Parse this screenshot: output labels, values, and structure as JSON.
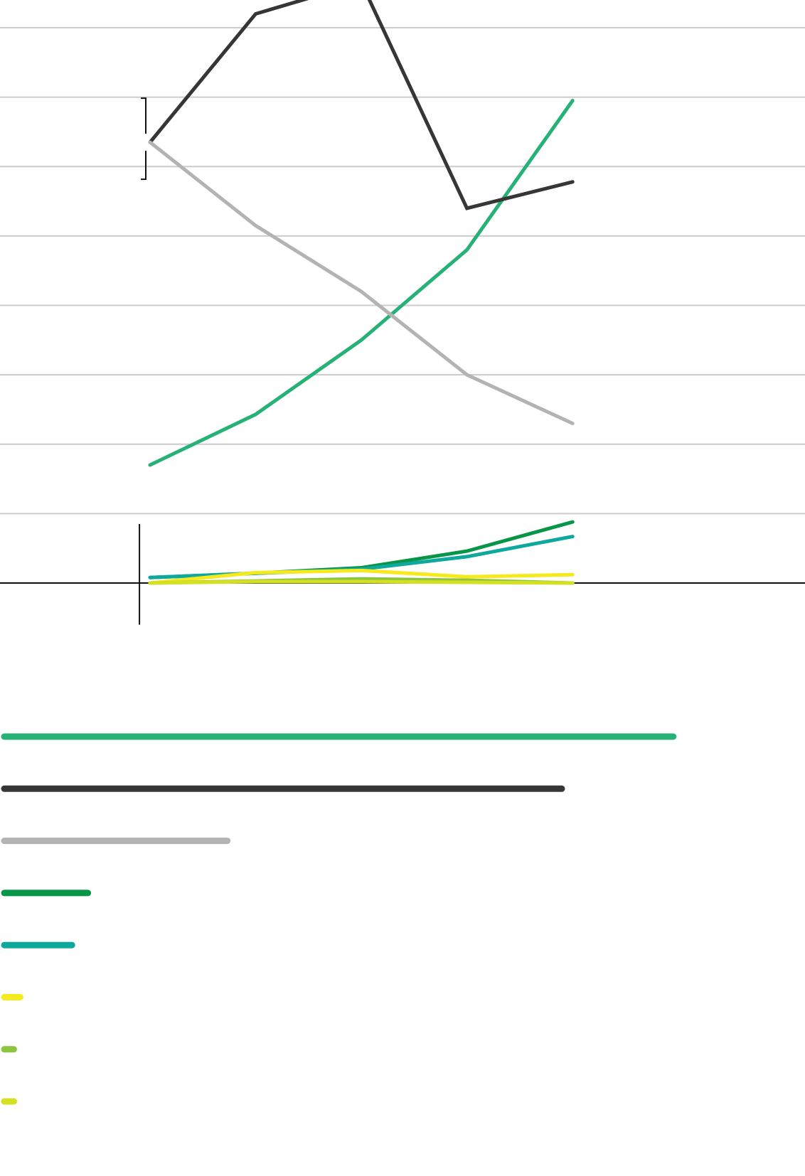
{
  "colors": {
    "background": "#ffffff",
    "gridline": "#cccccc",
    "axis": "#111111",
    "bracket": "#111111"
  },
  "chart_data": [
    {
      "type": "line",
      "title": "",
      "xlabel": "",
      "ylabel": "",
      "x": [
        0,
        1,
        2,
        3,
        4
      ],
      "xlim": [
        -1.42,
        6.2
      ],
      "ylim": [
        0,
        8.4
      ],
      "gridlines_y": [
        1,
        2,
        3,
        4,
        5,
        6,
        7,
        8
      ],
      "grid": true,
      "legend": "none",
      "series": [
        {
          "color": "#26b276",
          "values": [
            1.7,
            2.43,
            3.5,
            4.8,
            6.95
          ]
        },
        {
          "color": "#363636",
          "values": [
            6.35,
            8.2,
            8.65,
            5.4,
            5.78
          ]
        },
        {
          "color": "#b3b3b3",
          "values": [
            6.35,
            5.15,
            4.2,
            3.0,
            2.3
          ]
        },
        {
          "color": "#079548",
          "values": [
            0.08,
            0.14,
            0.22,
            0.46,
            0.88
          ]
        },
        {
          "color": "#0ea89d",
          "values": [
            0.08,
            0.14,
            0.2,
            0.38,
            0.67
          ]
        },
        {
          "color": "#f7ea1c",
          "values": [
            0.0,
            0.15,
            0.18,
            0.09,
            0.12
          ]
        },
        {
          "color": "#8cc63e",
          "values": [
            0.0,
            0.03,
            0.06,
            0.04,
            0.0
          ]
        },
        {
          "color": "#d4e021",
          "values": [
            0.0,
            0.02,
            0.02,
            0.01,
            0.0
          ]
        }
      ]
    },
    {
      "type": "bar",
      "orientation": "horizontal",
      "title": "",
      "xlabel": "",
      "ylabel": "",
      "xlim": [
        0,
        100
      ],
      "legend": "none",
      "values": [
        84,
        70,
        28,
        10.5,
        8.5,
        2,
        1.2,
        1.2
      ],
      "colors": [
        "#26b276",
        "#363636",
        "#b3b3b3",
        "#079548",
        "#0ea89d",
        "#f7ea1c",
        "#8cc63e",
        "#d4e021"
      ]
    }
  ]
}
